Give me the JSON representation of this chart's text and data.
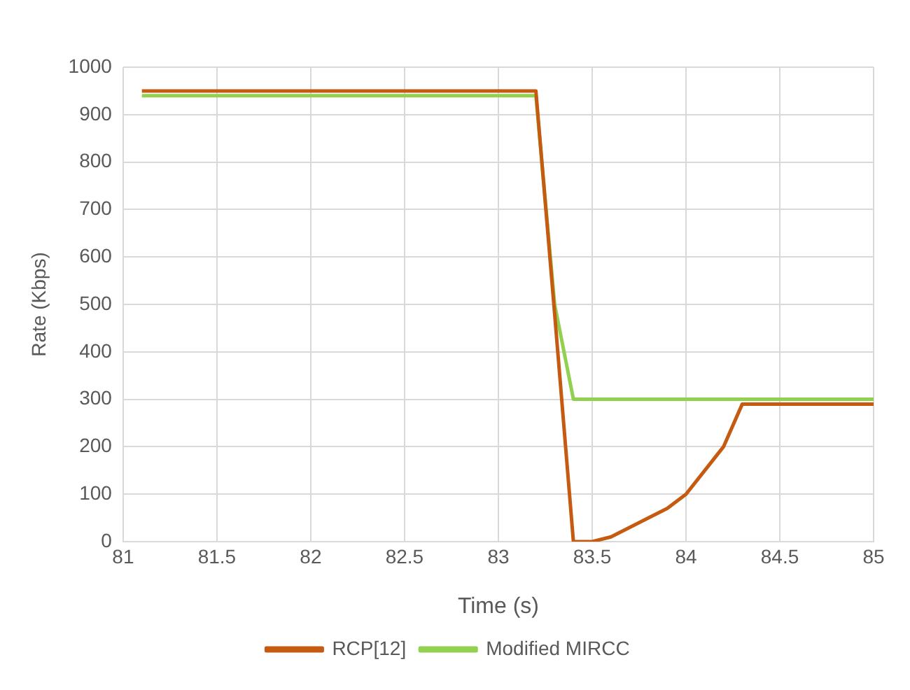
{
  "chart_data": {
    "type": "line",
    "xlabel": "Time (s)",
    "ylabel": "Rate (Kbps)",
    "xlim": [
      81,
      85
    ],
    "xticks": [
      81,
      81.5,
      82,
      82.5,
      83,
      83.5,
      84,
      84.5,
      85
    ],
    "ylim": [
      0,
      1000
    ],
    "yticks": [
      0,
      100,
      200,
      300,
      400,
      500,
      600,
      700,
      800,
      900,
      1000
    ],
    "grid": true,
    "legend": "bottom",
    "marker": "none",
    "line_style": "solid",
    "series": [
      {
        "name": "RCP[12]",
        "color": "#c55a11",
        "x": [
          81.1,
          83.2,
          83.3,
          83.4,
          83.5,
          83.6,
          83.9,
          84.0,
          84.2,
          84.3,
          85
        ],
        "values": [
          950,
          950,
          480,
          0,
          0,
          10,
          70,
          100,
          200,
          290,
          290
        ]
      },
      {
        "name": "Modified MIRCC",
        "color": "#92d050",
        "x": [
          81.1,
          83.2,
          83.3,
          83.4,
          85
        ],
        "values": [
          940,
          940,
          500,
          300,
          300
        ]
      }
    ]
  }
}
